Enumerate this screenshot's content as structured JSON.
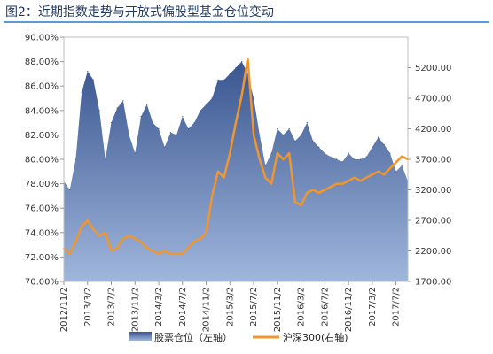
{
  "title": "图2：近期指数走势与开放式偏股型基金仓位变动",
  "colors": {
    "area": "#4a6aa0",
    "line": "#f0962f",
    "accent": "#5b9bd5"
  },
  "chart_data": {
    "type": "area",
    "x_ticks": [
      "2012/11/2",
      "2013/3/2",
      "2013/7/2",
      "2013/11/2",
      "2014/3/2",
      "2014/7/2",
      "2014/11/2",
      "2015/3/2",
      "2015/7/2",
      "2015/11/2",
      "2016/3/2",
      "2016/7/2",
      "2016/11/2",
      "2017/3/2",
      "2017/7/2"
    ],
    "y_left": {
      "range": [
        70,
        90
      ],
      "ticks": [
        "70.00%",
        "72.00%",
        "74.00%",
        "76.00%",
        "78.00%",
        "80.00%",
        "82.00%",
        "84.00%",
        "86.00%",
        "88.00%",
        "90.00%"
      ]
    },
    "y_right": {
      "range": [
        1700,
        5700
      ],
      "ticks": [
        "1700.00",
        "2200.00",
        "2700.00",
        "3200.00",
        "3700.00",
        "4200.00",
        "4700.00",
        "5200.00"
      ]
    },
    "x": [
      "2012/11/2",
      "2012/12/2",
      "2013/1/2",
      "2013/2/2",
      "2013/3/2",
      "2013/4/2",
      "2013/5/2",
      "2013/6/2",
      "2013/7/2",
      "2013/8/2",
      "2013/9/2",
      "2013/10/2",
      "2013/11/2",
      "2013/12/2",
      "2014/1/2",
      "2014/2/2",
      "2014/3/2",
      "2014/4/2",
      "2014/5/2",
      "2014/6/2",
      "2014/7/2",
      "2014/8/2",
      "2014/9/2",
      "2014/10/2",
      "2014/11/2",
      "2014/12/2",
      "2015/1/2",
      "2015/2/2",
      "2015/3/2",
      "2015/4/2",
      "2015/5/2",
      "2015/6/2",
      "2015/7/2",
      "2015/8/2",
      "2015/9/2",
      "2015/10/2",
      "2015/11/2",
      "2015/12/2",
      "2016/1/2",
      "2016/2/2",
      "2016/3/2",
      "2016/4/2",
      "2016/5/2",
      "2016/6/2",
      "2016/7/2",
      "2016/8/2",
      "2016/9/2",
      "2016/10/2",
      "2016/11/2",
      "2016/12/2",
      "2017/1/2",
      "2017/2/2",
      "2017/3/2",
      "2017/4/2",
      "2017/5/2",
      "2017/6/2",
      "2017/7/2",
      "2017/8/2",
      "2017/9/2"
    ],
    "series": [
      {
        "name": "股票仓位（左轴）",
        "axis": "left",
        "type": "area",
        "values": [
          78.2,
          77.5,
          80.0,
          85.5,
          87.2,
          86.5,
          84.0,
          80.0,
          83.0,
          84.2,
          84.8,
          82.0,
          80.5,
          83.5,
          84.5,
          83.0,
          82.5,
          81.0,
          82.2,
          82.0,
          83.5,
          82.5,
          83.0,
          84.0,
          84.5,
          85.0,
          86.5,
          86.5,
          87.0,
          87.5,
          88.0,
          87.0,
          85.0,
          82.0,
          79.5,
          80.5,
          82.5,
          82.0,
          82.5,
          81.5,
          82.0,
          83.0,
          81.5,
          81.0,
          80.5,
          80.2,
          80.0,
          79.8,
          80.5,
          80.0,
          80.0,
          80.2,
          81.0,
          81.8,
          81.2,
          80.5,
          79.0,
          79.5,
          78.2
        ]
      },
      {
        "name": "沪深300(右轴)",
        "axis": "right",
        "type": "line",
        "values": [
          2250,
          2150,
          2350,
          2600,
          2700,
          2550,
          2450,
          2500,
          2200,
          2250,
          2400,
          2450,
          2400,
          2350,
          2250,
          2200,
          2150,
          2200,
          2150,
          2150,
          2150,
          2250,
          2350,
          2400,
          2500,
          3100,
          3500,
          3400,
          3800,
          4300,
          4750,
          5350,
          4100,
          3700,
          3400,
          3300,
          3800,
          3700,
          3800,
          3000,
          2950,
          3150,
          3200,
          3150,
          3200,
          3250,
          3300,
          3300,
          3350,
          3400,
          3350,
          3400,
          3450,
          3500,
          3450,
          3550,
          3650,
          3750,
          3700
        ]
      }
    ],
    "legend": {
      "position": "bottom",
      "entries": [
        "股票仓位（左轴）",
        "沪深300(右轴)"
      ]
    }
  }
}
